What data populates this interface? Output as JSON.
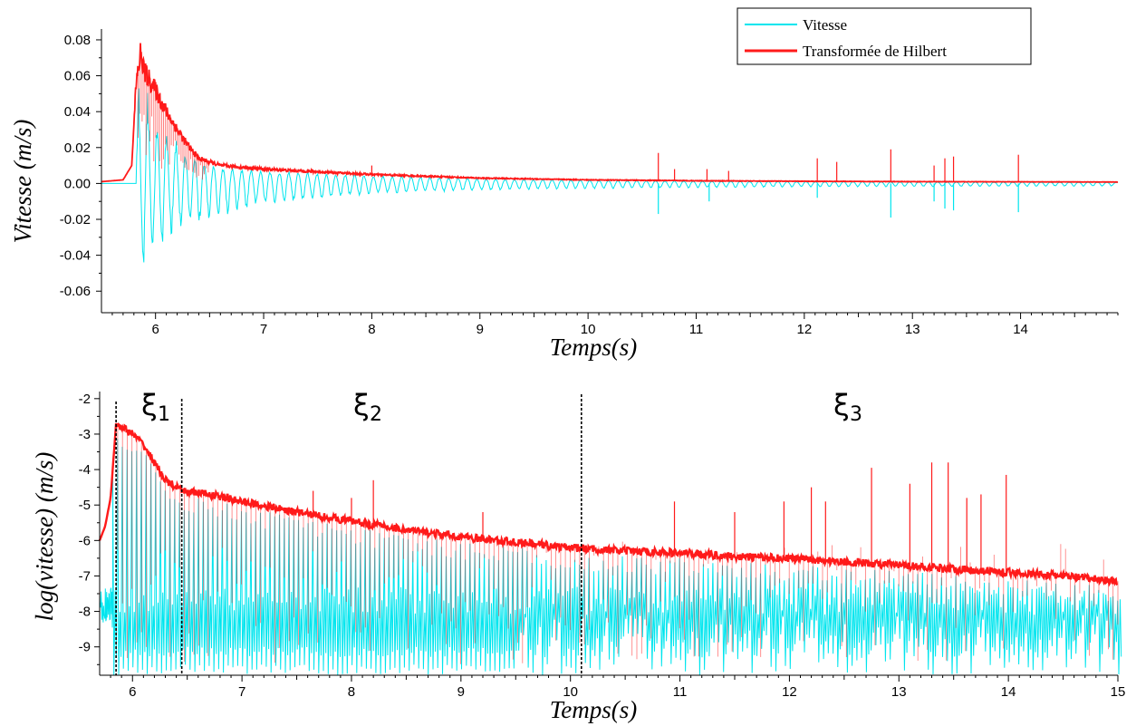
{
  "chart_data": [
    {
      "type": "line",
      "xlabel": "Temps(s)",
      "ylabel": "Vitesse (m/s)",
      "xlim": [
        5.5,
        14.9
      ],
      "ylim": [
        -0.072,
        0.082
      ],
      "xticks": [
        6,
        7,
        8,
        9,
        10,
        11,
        12,
        13,
        14
      ],
      "yticks": [
        0.08,
        0.06,
        0.04,
        0.02,
        0.0,
        -0.02,
        -0.04,
        -0.06
      ],
      "ytick_labels": [
        "0.08",
        "0.06",
        "0.04",
        "0.02",
        "0.00",
        "-0.02",
        "-0.04",
        "-0.06"
      ],
      "grid": false,
      "legend_position": "top-right",
      "series": [
        {
          "name": "Vitesse",
          "color": "#00e5ee",
          "description_points": {
            "x": [
              5.82,
              5.85,
              5.9,
              6.0,
              6.1,
              6.3,
              6.5,
              7.0,
              8.0,
              9.0,
              10.0,
              12.0,
              14.9
            ],
            "min_y": [
              -0.062,
              -0.062,
              -0.05,
              -0.045,
              -0.035,
              -0.025,
              -0.02,
              -0.012,
              -0.006,
              -0.004,
              -0.003,
              -0.002,
              -0.0015
            ]
          },
          "spikes": [
            {
              "x": 10.65,
              "y": -0.017
            },
            {
              "x": 11.12,
              "y": -0.01
            },
            {
              "x": 12.12,
              "y": -0.008
            },
            {
              "x": 12.8,
              "y": -0.019
            },
            {
              "x": 13.2,
              "y": -0.01
            },
            {
              "x": 13.3,
              "y": -0.014
            },
            {
              "x": 13.38,
              "y": -0.015
            },
            {
              "x": 13.98,
              "y": -0.016
            }
          ]
        },
        {
          "name": "Transformée de Hilbert",
          "color": "#ff1a1a",
          "envelope": {
            "x": [
              5.5,
              5.7,
              5.78,
              5.82,
              5.86,
              5.9,
              6.0,
              6.1,
              6.2,
              6.3,
              6.4,
              6.6,
              7.0,
              7.5,
              8.0,
              8.5,
              9.0,
              9.5,
              10.0,
              11.0,
              12.0,
              13.0,
              14.0,
              14.9
            ],
            "y": [
              0.001,
              0.002,
              0.01,
              0.055,
              0.072,
              0.062,
              0.052,
              0.04,
              0.03,
              0.021,
              0.014,
              0.01,
              0.008,
              0.0065,
              0.005,
              0.004,
              0.003,
              0.0025,
              0.002,
              0.0015,
              0.0012,
              0.001,
              0.0009,
              0.0008
            ]
          },
          "spikes": [
            {
              "x": 8.0,
              "y": 0.01
            },
            {
              "x": 10.65,
              "y": 0.017
            },
            {
              "x": 10.8,
              "y": 0.008
            },
            {
              "x": 11.1,
              "y": 0.008
            },
            {
              "x": 11.3,
              "y": 0.007
            },
            {
              "x": 12.12,
              "y": 0.014
            },
            {
              "x": 12.3,
              "y": 0.012
            },
            {
              "x": 12.8,
              "y": 0.019
            },
            {
              "x": 13.2,
              "y": 0.01
            },
            {
              "x": 13.3,
              "y": 0.014
            },
            {
              "x": 13.38,
              "y": 0.015
            },
            {
              "x": 13.98,
              "y": 0.016
            }
          ]
        }
      ]
    },
    {
      "type": "line",
      "xlabel": "Temps(s)",
      "ylabel": "log(vitesse) (m/s)",
      "xlim": [
        5.7,
        15.0
      ],
      "ylim": [
        -9.8,
        -1.8
      ],
      "xticks": [
        6,
        7,
        8,
        9,
        10,
        11,
        12,
        13,
        14,
        15
      ],
      "yticks": [
        -2,
        -3,
        -4,
        -5,
        -6,
        -7,
        -8,
        -9
      ],
      "grid": false,
      "regions": [
        {
          "label": "ξ",
          "subscript": "1",
          "start": 5.85,
          "end": 6.45
        },
        {
          "label": "ξ",
          "subscript": "2",
          "start": 6.45,
          "end": 10.1
        },
        {
          "label": "ξ",
          "subscript": "3",
          "start": 10.1,
          "end": 15.0
        }
      ],
      "boundaries": [
        5.85,
        6.45,
        10.1
      ],
      "series": [
        {
          "name": "Vitesse",
          "color": "#00e5ee",
          "description": "dense oscillation between approx -9.8 and the red envelope"
        },
        {
          "name": "Transformée de Hilbert",
          "color": "#ff1a1a",
          "envelope": {
            "x": [
              5.7,
              5.75,
              5.8,
              5.85,
              5.9,
              6.0,
              6.1,
              6.2,
              6.3,
              6.45,
              6.7,
              7.0,
              7.5,
              8.0,
              8.5,
              9.0,
              9.5,
              10.0,
              10.5,
              11.0,
              11.5,
              12.0,
              12.5,
              13.0,
              13.5,
              14.0,
              14.5,
              15.0
            ],
            "y": [
              -6.0,
              -5.6,
              -4.8,
              -2.7,
              -2.8,
              -3.0,
              -3.3,
              -3.8,
              -4.3,
              -4.6,
              -4.7,
              -4.9,
              -5.2,
              -5.45,
              -5.7,
              -5.9,
              -6.05,
              -6.2,
              -6.3,
              -6.35,
              -6.45,
              -6.5,
              -6.6,
              -6.7,
              -6.8,
              -6.9,
              -7.0,
              -7.15
            ]
          }
        }
      ]
    }
  ],
  "legend": {
    "items": [
      {
        "label": "Vitesse",
        "color": "#00e5ee"
      },
      {
        "label": "Transformée de Hilbert",
        "color": "#ff1a1a"
      }
    ]
  }
}
